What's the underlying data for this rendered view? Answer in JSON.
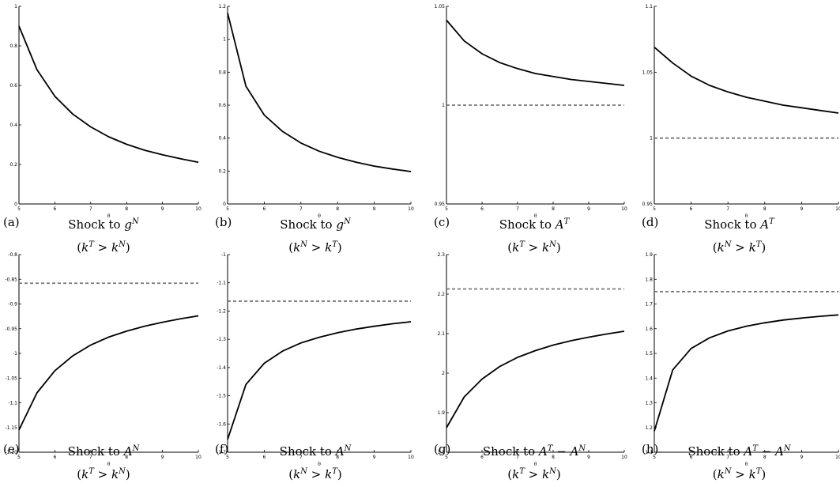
{
  "chart_data": [
    {
      "type": "line",
      "xlabel": "θ",
      "xlim": [
        5,
        10
      ],
      "ylim": [
        0,
        1
      ],
      "xticks": [
        5,
        6,
        7,
        8,
        9,
        10
      ],
      "yticks": [
        0,
        0.2,
        0.4,
        0.6,
        0.8,
        1
      ],
      "yticklabels": [
        "0",
        "0.2",
        "0.4",
        "0.6",
        "0.8",
        "1"
      ],
      "x": [
        5,
        5.5,
        6,
        6.5,
        7,
        7.5,
        8,
        8.5,
        9,
        9.5,
        10
      ],
      "series": [
        {
          "values": [
            0.9,
            0.68,
            0.545,
            0.455,
            0.39,
            0.34,
            0.302,
            0.272,
            0.249,
            0.229,
            0.211
          ]
        }
      ],
      "reference": null,
      "caption": {
        "letter": "(a)",
        "base": "Shock to ",
        "var": "g",
        "sup": "N",
        "cond_a": "k",
        "sup_a": "T",
        "cond_b": "k",
        "sup_b": "N"
      }
    },
    {
      "type": "line",
      "xlabel": "θ",
      "xlim": [
        5,
        10
      ],
      "ylim": [
        0,
        1.2
      ],
      "xticks": [
        5,
        6,
        7,
        8,
        9,
        10
      ],
      "yticks": [
        0,
        0.2,
        0.4,
        0.6,
        0.8,
        1,
        1.2
      ],
      "yticklabels": [
        "0",
        "0.2",
        "0.4",
        "0.6",
        "0.8",
        "1",
        "1.2"
      ],
      "x": [
        5,
        5.5,
        6,
        6.5,
        7,
        7.5,
        8,
        8.5,
        9,
        9.5,
        10
      ],
      "series": [
        {
          "values": [
            1.16,
            0.715,
            0.54,
            0.44,
            0.37,
            0.32,
            0.283,
            0.254,
            0.23,
            0.212,
            0.197
          ]
        }
      ],
      "reference": null,
      "caption": {
        "letter": "(b)",
        "base": "Shock to ",
        "var": "g",
        "sup": "N",
        "cond_a": "k",
        "sup_a": "N",
        "cond_b": "k",
        "sup_b": "T"
      }
    },
    {
      "type": "line",
      "xlabel": "θ",
      "xlim": [
        5,
        10
      ],
      "ylim": [
        0.95,
        1.05
      ],
      "xticks": [
        5,
        6,
        7,
        8,
        9,
        10
      ],
      "yticks": [
        0.95,
        1,
        1.05
      ],
      "yticklabels": [
        "0.95",
        "1",
        "1.05"
      ],
      "x": [
        5,
        5.5,
        6,
        6.5,
        7,
        7.5,
        8,
        8.5,
        9,
        9.5,
        10
      ],
      "series": [
        {
          "values": [
            1.043,
            1.0325,
            1.026,
            1.0215,
            1.0185,
            1.016,
            1.0145,
            1.013,
            1.012,
            1.011,
            1.01
          ]
        }
      ],
      "reference": 1,
      "caption": {
        "letter": "(c)",
        "base": "Shock to ",
        "var": "A",
        "sup": "T",
        "cond_a": "k",
        "sup_a": "T",
        "cond_b": "k",
        "sup_b": "N"
      }
    },
    {
      "type": "line",
      "xlabel": "θ",
      "xlim": [
        5,
        10
      ],
      "ylim": [
        0.95,
        1.1
      ],
      "xticks": [
        5,
        6,
        7,
        8,
        9,
        10
      ],
      "yticks": [
        0.95,
        1,
        1.05,
        1.1
      ],
      "yticklabels": [
        "0.95",
        "1",
        "1.05",
        "1.1"
      ],
      "x": [
        5,
        5.5,
        6,
        6.5,
        7,
        7.5,
        8,
        8.5,
        9,
        9.5,
        10
      ],
      "series": [
        {
          "values": [
            1.069,
            1.057,
            1.047,
            1.04,
            1.035,
            1.031,
            1.028,
            1.025,
            1.023,
            1.021,
            1.019
          ]
        }
      ],
      "reference": 1,
      "caption": {
        "letter": "(d)",
        "base": "Shock to ",
        "var": "A",
        "sup": "T",
        "cond_a": "k",
        "sup_a": "N",
        "cond_b": "k",
        "sup_b": "T"
      }
    },
    {
      "type": "line",
      "xlabel": "θ",
      "xlim": [
        5,
        10
      ],
      "ylim": [
        -1.2,
        -0.8
      ],
      "xticks": [
        5,
        6,
        7,
        8,
        9,
        10
      ],
      "yticks": [
        -1.2,
        -1.15,
        -1.1,
        -1.05,
        -1,
        -0.95,
        -0.9,
        -0.85,
        -0.8
      ],
      "yticklabels": [
        "-1.20",
        "-1.15",
        "-1.1",
        "-1.05",
        "-1",
        "-0.95",
        "-0.9",
        "-0.85",
        "-0.8"
      ],
      "x": [
        5,
        5.5,
        6,
        6.5,
        7,
        7.5,
        8,
        8.5,
        9,
        9.5,
        10
      ],
      "series": [
        {
          "values": [
            -1.155,
            -1.08,
            -1.035,
            -1.005,
            -0.983,
            -0.967,
            -0.955,
            -0.945,
            -0.937,
            -0.93,
            -0.924
          ]
        }
      ],
      "reference": -0.858,
      "caption": {
        "letter": "(e)",
        "base": "Shock to ",
        "var": "A",
        "sup": "N",
        "cond_a": "k",
        "sup_a": "T",
        "cond_b": "k",
        "sup_b": "N"
      }
    },
    {
      "type": "line",
      "xlabel": "θ",
      "xlim": [
        5,
        10
      ],
      "ylim": [
        -1.7,
        -1
      ],
      "xticks": [
        5,
        6,
        7,
        8,
        9,
        10
      ],
      "yticks": [
        -1.7,
        -1.6,
        -1.5,
        -1.4,
        -1.3,
        -1.2,
        -1.1,
        -1
      ],
      "yticklabels": [
        "-1.7",
        "-1.6",
        "-1.5",
        "-1.4",
        "-1.3",
        "-1.2",
        "-1.1",
        "-1"
      ],
      "x": [
        5,
        5.5,
        6,
        6.5,
        7,
        7.5,
        8,
        8.5,
        9,
        9.5,
        10
      ],
      "series": [
        {
          "values": [
            -1.655,
            -1.46,
            -1.385,
            -1.342,
            -1.313,
            -1.293,
            -1.277,
            -1.264,
            -1.254,
            -1.245,
            -1.238
          ]
        }
      ],
      "reference": -1.165,
      "caption": {
        "letter": "(f)",
        "base": "Shock to ",
        "var": "A",
        "sup": "N",
        "cond_a": "k",
        "sup_a": "N",
        "cond_b": "k",
        "sup_b": "T"
      }
    },
    {
      "type": "line",
      "xlabel": "θ",
      "xlim": [
        5,
        10
      ],
      "ylim": [
        1.8,
        2.3
      ],
      "xticks": [
        5,
        6,
        7,
        8,
        9,
        10
      ],
      "yticks": [
        1.8,
        1.9,
        2,
        2.1,
        2.2,
        2.3
      ],
      "yticklabels": [
        "1.8",
        "1.9",
        "2",
        "2.1",
        "2.2",
        "2.3"
      ],
      "x": [
        5,
        5.5,
        6,
        6.5,
        7,
        7.5,
        8,
        8.5,
        9,
        9.5,
        10
      ],
      "series": [
        {
          "values": [
            1.862,
            1.94,
            1.985,
            2.017,
            2.04,
            2.057,
            2.071,
            2.082,
            2.091,
            2.099,
            2.106
          ]
        }
      ],
      "reference": 2.213,
      "caption": {
        "letter": "(g)",
        "base": "Shock to ",
        "var": "A",
        "sup": "T",
        "minus": " − ",
        "var2": "A",
        "sup2": "N",
        "cond_a": "k",
        "sup_a": "T",
        "cond_b": "k",
        "sup_b": "N"
      }
    },
    {
      "type": "line",
      "xlabel": "θ",
      "xlim": [
        5,
        10
      ],
      "ylim": [
        1.1,
        1.9
      ],
      "xticks": [
        5,
        6,
        7,
        8,
        9,
        10
      ],
      "yticks": [
        1.1,
        1.2,
        1.3,
        1.4,
        1.5,
        1.6,
        1.7,
        1.8,
        1.9
      ],
      "yticklabels": [
        "1.1",
        "1.2",
        "1.3",
        "1.4",
        "1.5",
        "1.6",
        "1.7",
        "1.8",
        "1.9"
      ],
      "x": [
        5,
        5.5,
        6,
        6.5,
        7,
        7.5,
        8,
        8.5,
        9,
        9.5,
        10
      ],
      "series": [
        {
          "values": [
            1.185,
            1.433,
            1.52,
            1.563,
            1.591,
            1.61,
            1.624,
            1.635,
            1.643,
            1.65,
            1.656
          ]
        }
      ],
      "reference": 1.75,
      "caption": {
        "letter": "(h)",
        "base": "Shock to ",
        "var": "A",
        "sup": "T",
        "minus": " − ",
        "var2": "A",
        "sup2": "N",
        "cond_a": "k",
        "sup_a": "N",
        "cond_b": "k",
        "sup_b": "T"
      }
    }
  ],
  "colors": {
    "curve": "#000000",
    "reference": "#777777",
    "axis": "#000000"
  },
  "ui_text": {
    "gt": " > "
  }
}
